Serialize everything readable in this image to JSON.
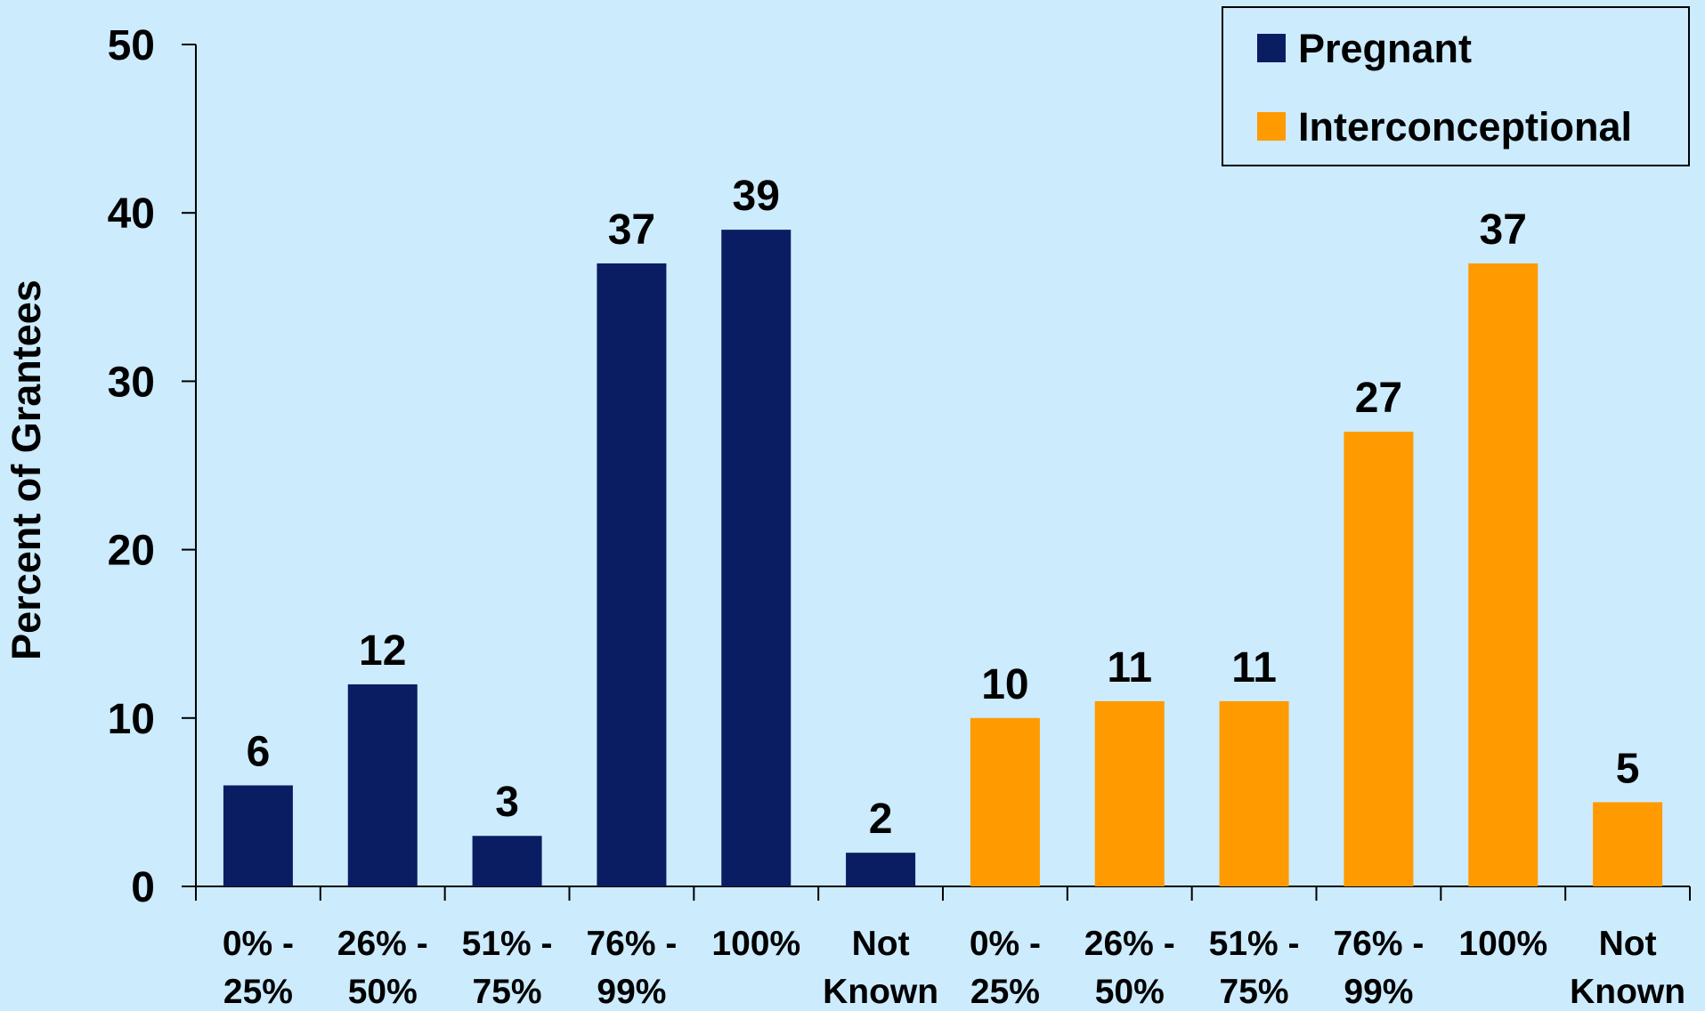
{
  "chart_data": {
    "type": "bar",
    "title": "",
    "xlabel": "",
    "ylabel": "Percent of Grantees",
    "ylim": [
      0,
      50
    ],
    "yticks": [
      0,
      10,
      20,
      30,
      40,
      50
    ],
    "grid": false,
    "legend_position": "top-right",
    "series": [
      {
        "name": "Pregnant",
        "color": "#0A1D63",
        "categories": [
          [
            "0% -",
            "25%"
          ],
          [
            "26% -",
            "50%"
          ],
          [
            "51% -",
            "75%"
          ],
          [
            "76% -",
            "99%"
          ],
          [
            "100%"
          ],
          [
            "Not",
            "Known"
          ]
        ],
        "values": [
          6,
          12,
          3,
          37,
          39,
          2
        ]
      },
      {
        "name": "Interconceptional",
        "color": "#FF9A00",
        "categories": [
          [
            "0% -",
            "25%"
          ],
          [
            "26% -",
            "50%"
          ],
          [
            "51% -",
            "75%"
          ],
          [
            "76% -",
            "99%"
          ],
          [
            "100%"
          ],
          [
            "Not",
            "Known"
          ]
        ],
        "values": [
          10,
          11,
          11,
          27,
          37,
          5
        ]
      }
    ]
  }
}
